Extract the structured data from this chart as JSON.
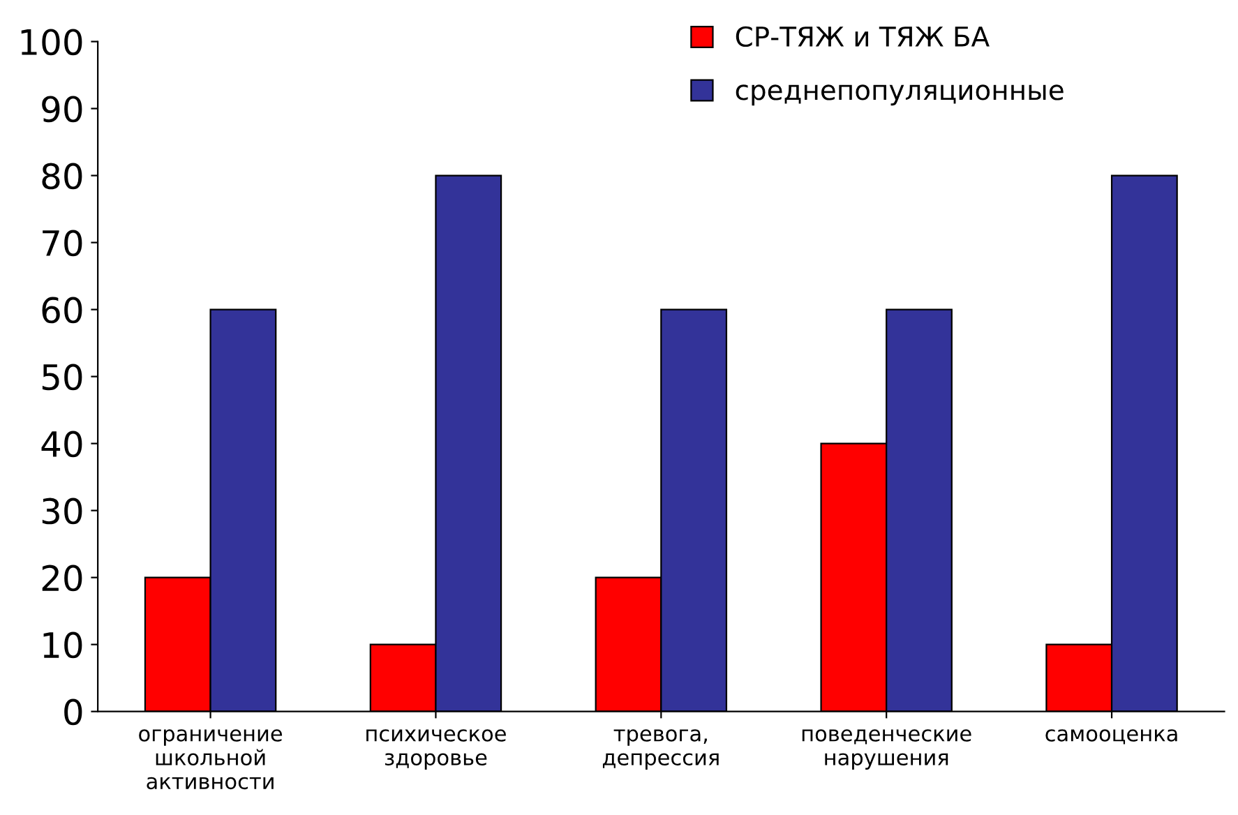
{
  "chart_data": {
    "type": "bar",
    "categories": [
      "ограничение\nшкольной\nактивности",
      "психическое\nздоровье",
      "тревога,\nдепрессия",
      "поведенческие\nнарушения",
      "самооценка"
    ],
    "series": [
      {
        "name": "СР-ТЯЖ и ТЯЖ БА",
        "color": "#ff0000",
        "values": [
          20,
          10,
          20,
          40,
          10
        ]
      },
      {
        "name": "среднепопуляционные",
        "color": "#333399",
        "values": [
          60,
          80,
          60,
          60,
          80
        ]
      }
    ],
    "ylim": [
      0,
      100
    ],
    "yticks": [
      0,
      10,
      20,
      30,
      40,
      50,
      60,
      70,
      80,
      90,
      100
    ],
    "grid": false,
    "legend": "top right"
  }
}
